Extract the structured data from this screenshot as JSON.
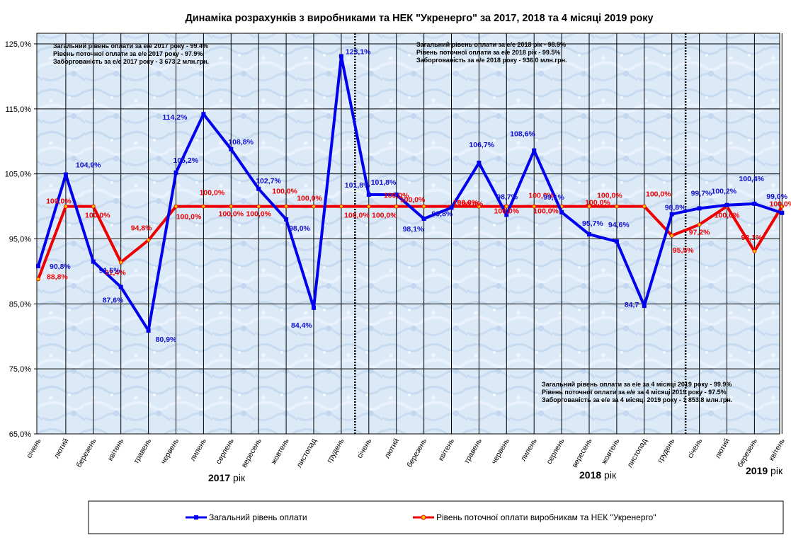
{
  "chart_data": {
    "type": "line",
    "title": "Динаміка розрахунків з виробниками та НЕК \"Укренерго\" за 2017, 2018 та 4 місяці 2019 року",
    "y_ticks": [
      "125,0%",
      "115,0%",
      "105,0%",
      "95,0%",
      "85,0%",
      "75,0%",
      "65,0%"
    ],
    "ylim": [
      65,
      125
    ],
    "grid": true,
    "legend_position": "bottom",
    "categories": [
      "січень",
      "лютий",
      "березень",
      "квітень",
      "травень",
      "червень",
      "липень",
      "серпень",
      "вересень",
      "жовтень",
      "листопад",
      "грудень",
      "січень",
      "лютий",
      "березень",
      "квітень",
      "травень",
      "червень",
      "липень",
      "серпень",
      "вересень",
      "жовтень",
      "листопад",
      "грудень",
      "січень",
      "лютий",
      "березень",
      "квітень"
    ],
    "year_labels": [
      {
        "bold": "2017",
        "normal": " рік"
      },
      {
        "bold": "2018",
        "normal": " рік"
      },
      {
        "bold": "2019",
        "normal": " рік"
      }
    ],
    "series": [
      {
        "name": "Загальний  рівень  оплати",
        "color": "#0000ee",
        "values": [
          90.8,
          104.9,
          91.5,
          87.6,
          80.9,
          105.2,
          114.2,
          108.8,
          102.7,
          98.0,
          84.4,
          123.1,
          101.8,
          101.8,
          98.1,
          99.8,
          106.7,
          98.7,
          108.6,
          99.1,
          95.7,
          94.6,
          84.7,
          98.8,
          99.7,
          100.2,
          100.4,
          99.0
        ],
        "labels": [
          "90,8%",
          "104,9%",
          "91,5%",
          "87,6%",
          "80,9%",
          "105,2%",
          "114,2%",
          "108,8%",
          "102,7%",
          "98,0%",
          "84,4%",
          "123,1%",
          "101,8%",
          "101,8%",
          "98,1%",
          "99,8%",
          "106,7%",
          "98,7%",
          "108,6%",
          "99,1%",
          "95,7%",
          "94,6%",
          "84,7",
          "98,8%",
          "99,7%",
          "100,2%",
          "100,4%",
          "99,0%"
        ]
      },
      {
        "name": "Рівень  поточної  оплати  виробникам  та  НЕК  \"Укренерго\"",
        "color": "#ee0000",
        "values": [
          88.8,
          100.0,
          100.0,
          91.4,
          94.8,
          100.0,
          100.0,
          100.0,
          100.0,
          100.0,
          100.0,
          100.0,
          100.0,
          100.0,
          100.0,
          100.0,
          100.0,
          100.0,
          100.0,
          100.0,
          100.0,
          100.0,
          100.0,
          95.5,
          97.2,
          100.0,
          93.1,
          100.0
        ],
        "labels": [
          "88,8%",
          "100,0%",
          "100,0%",
          "91,4%",
          "94,8%",
          "100,0%",
          "100,0%",
          "100,0%",
          "100,0%",
          "100,0%",
          "100,0%",
          "100,0%",
          "100,0%",
          "100,0%",
          "100,0%",
          "100,0%",
          "100,0%",
          "100,0%",
          "100,0%",
          "100,0%",
          "100,0%",
          "100,0%",
          "100,0%",
          "95,5%",
          "97,2%",
          "100,0%",
          "93,1%",
          "100,0%"
        ]
      }
    ],
    "annotations": [
      [
        "Загальний рівень оплати за е/е 2017 року - 99.4%",
        "Рівень поточної оплати за е/е 2017 року - 97.9%",
        "Заборгованість за е/е 2017 року - 3 673.2 млн.грн."
      ],
      [
        "Загальний рівень оплати за е/е 2018 рік - 98.9%",
        "Рівень поточної оплати за е/е 2018 рік - 99.5%",
        "Заборгованість за е/е 2018 року - 936.0 млн.грн."
      ],
      [
        "Загальний рівень оплати за е/е за 4 місяці 2019 року - 99.9%",
        "Рівень поточної оплати за е/е за 4 місяці 2019 року - 97.5%",
        "Заборгованість за е/е за 4 місяці 2019 року - 1 853.8 млн.грн."
      ]
    ]
  }
}
